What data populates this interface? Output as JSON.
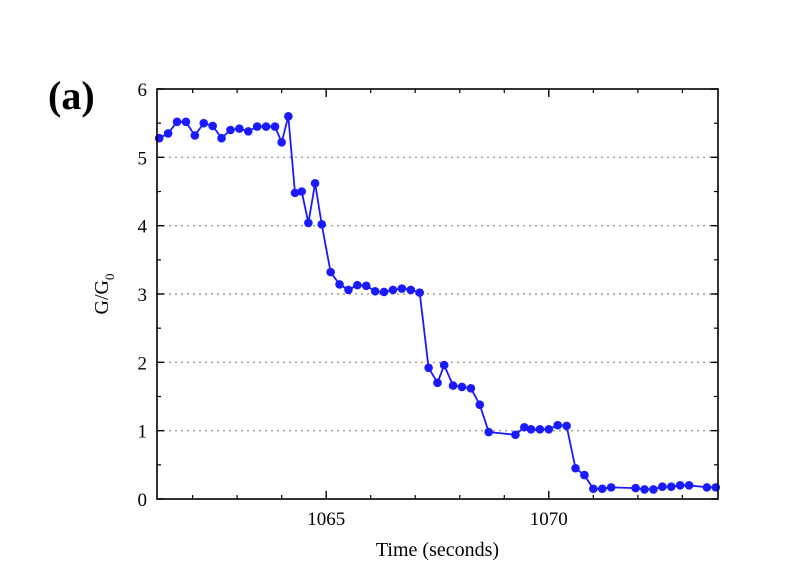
{
  "panel_label": "(a)",
  "chart_data": {
    "type": "line",
    "title": "",
    "xlabel": "Time (seconds)",
    "ylabel": "G/G",
    "ylabel_subscript": "0",
    "xlim": [
      1061.2,
      1073.8
    ],
    "ylim": [
      0,
      6
    ],
    "x_ticks": [
      1065,
      1070
    ],
    "y_ticks": [
      0,
      1,
      2,
      3,
      4,
      5,
      6
    ],
    "grid": "horizontal dotted",
    "legend": "none",
    "series_color": "#1a1aff",
    "series": [
      {
        "x": [
          1061.25,
          1061.45,
          1061.65,
          1061.85,
          1062.05,
          1062.25,
          1062.45,
          1062.65,
          1062.85,
          1063.05,
          1063.25,
          1063.45,
          1063.65,
          1063.85,
          1064.0,
          1064.15,
          1064.3,
          1064.45,
          1064.6,
          1064.75,
          1064.9,
          1065.1,
          1065.3,
          1065.5,
          1065.7,
          1065.9,
          1066.1,
          1066.3,
          1066.5,
          1066.7,
          1066.9,
          1067.1,
          1067.3,
          1067.5,
          1067.65,
          1067.85,
          1068.05,
          1068.25,
          1068.45,
          1068.65,
          1069.25,
          1069.45,
          1069.6,
          1069.8,
          1070.0,
          1070.2,
          1070.4,
          1070.6,
          1070.8,
          1071.0,
          1071.2,
          1071.4,
          1071.95,
          1072.15,
          1072.35,
          1072.55,
          1072.75,
          1072.95,
          1073.15,
          1073.55,
          1073.75
        ],
        "y": [
          5.28,
          5.35,
          5.52,
          5.52,
          5.32,
          5.5,
          5.46,
          5.28,
          5.4,
          5.42,
          5.38,
          5.45,
          5.45,
          5.45,
          5.22,
          5.6,
          4.48,
          4.5,
          4.04,
          4.62,
          4.02,
          3.32,
          3.14,
          3.06,
          3.13,
          3.12,
          3.04,
          3.03,
          3.06,
          3.08,
          3.06,
          3.02,
          1.92,
          1.7,
          1.96,
          1.66,
          1.64,
          1.62,
          1.38,
          0.98,
          0.94,
          1.05,
          1.02,
          1.02,
          1.02,
          1.08,
          1.07,
          0.45,
          0.35,
          0.15,
          0.15,
          0.17,
          0.16,
          0.14,
          0.14,
          0.18,
          0.18,
          0.2,
          0.2,
          0.17,
          0.17
        ]
      }
    ]
  }
}
